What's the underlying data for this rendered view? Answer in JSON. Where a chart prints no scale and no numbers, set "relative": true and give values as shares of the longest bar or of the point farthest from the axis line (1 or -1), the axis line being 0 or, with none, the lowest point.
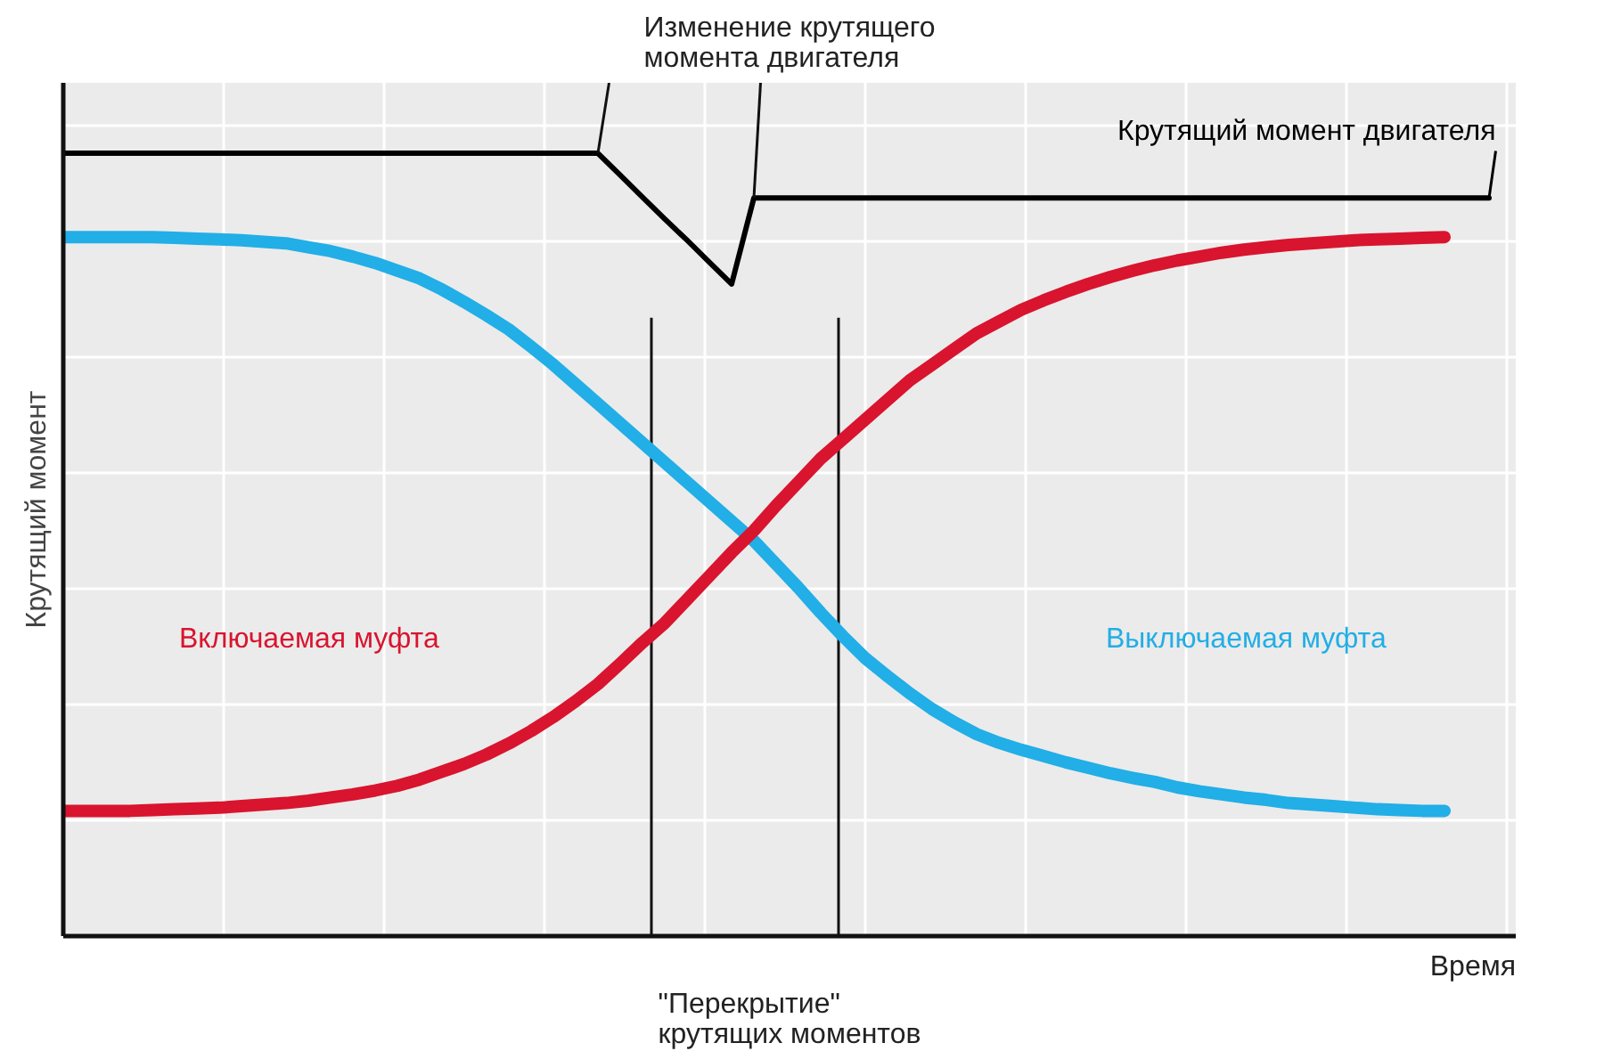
{
  "chart_data": {
    "type": "line",
    "relative": true,
    "ylabel": "Крутящий момент",
    "xlabel": "Время",
    "categories": [
      null,
      null,
      null,
      null,
      null,
      null,
      null,
      null,
      null,
      null,
      null,
      null,
      null,
      null,
      null,
      null,
      null,
      null,
      null,
      null,
      null,
      null,
      null,
      null,
      null,
      null,
      null,
      null,
      null,
      null,
      null,
      null,
      null,
      null,
      null,
      null,
      null,
      null,
      null,
      null,
      null,
      null,
      null,
      null,
      null,
      null,
      null,
      null,
      null,
      null,
      null,
      null,
      null,
      null,
      null,
      null,
      null,
      null,
      null,
      null,
      null,
      null,
      null,
      null,
      null
    ],
    "series": [
      {
        "name": "Крутящий момент двигателя",
        "color": "#000000",
        "values": [
          1,
          1,
          1,
          1,
          1,
          1,
          1,
          1,
          1,
          1,
          1,
          1,
          1,
          1,
          1,
          1,
          1,
          1,
          1,
          1,
          1,
          1,
          1,
          1,
          1,
          0.972,
          0.944,
          0.916,
          0.889,
          0.861,
          0.833,
          0.943,
          0.943,
          0.943,
          0.943,
          0.943,
          0.943,
          0.943,
          0.943,
          0.943,
          0.943,
          0.943,
          0.943,
          0.943,
          0.943,
          0.943,
          0.943,
          0.943,
          0.943,
          0.943,
          0.943,
          0.943,
          0.943,
          0.943,
          0.943,
          0.943,
          0.943,
          0.943,
          0.943,
          0.943,
          0.943,
          0.943,
          0.943,
          0.943,
          0.943
        ]
      },
      {
        "name": "Выключаемая муфта",
        "color": "#22aee6",
        "values": [
          0.893,
          0.893,
          0.893,
          0.893,
          0.893,
          0.892,
          0.891,
          0.89,
          0.889,
          0.887,
          0.885,
          0.88,
          0.875,
          0.868,
          0.86,
          0.85,
          0.84,
          0.826,
          0.81,
          0.793,
          0.775,
          0.753,
          0.73,
          0.705,
          0.68,
          0.655,
          0.63,
          0.605,
          0.58,
          0.555,
          0.53,
          0.505,
          0.475,
          0.445,
          0.413,
          0.383,
          0.355,
          0.332,
          0.31,
          0.29,
          0.273,
          0.258,
          0.247,
          0.238,
          0.23,
          0.222,
          0.215,
          0.208,
          0.202,
          0.197,
          0.19,
          0.185,
          0.181,
          0.177,
          0.174,
          0.17,
          0.168,
          0.166,
          0.164,
          0.162,
          0.161,
          0.16,
          0.16,
          null,
          null
        ]
      },
      {
        "name": "Включаемая муфта",
        "color": "#d9142e",
        "values": [
          0.16,
          0.16,
          0.16,
          0.16,
          0.161,
          0.162,
          0.163,
          0.164,
          0.166,
          0.168,
          0.17,
          0.173,
          0.177,
          0.181,
          0.186,
          0.192,
          0.2,
          0.21,
          0.22,
          0.232,
          0.246,
          0.262,
          0.28,
          0.3,
          0.322,
          0.348,
          0.375,
          0.4,
          0.43,
          0.46,
          0.49,
          0.518,
          0.55,
          0.58,
          0.61,
          0.635,
          0.66,
          0.685,
          0.71,
          0.73,
          0.75,
          0.77,
          0.785,
          0.8,
          0.812,
          0.823,
          0.833,
          0.842,
          0.85,
          0.857,
          0.863,
          0.868,
          0.873,
          0.877,
          0.88,
          0.883,
          0.885,
          0.887,
          0.889,
          0.89,
          0.891,
          0.892,
          0.893,
          null,
          null
        ]
      }
    ],
    "annotations": [
      "Изменение крутящего\nмомента двигателя",
      "\"Перекрытие\"\nкрутящих моментов"
    ],
    "grid": true
  }
}
